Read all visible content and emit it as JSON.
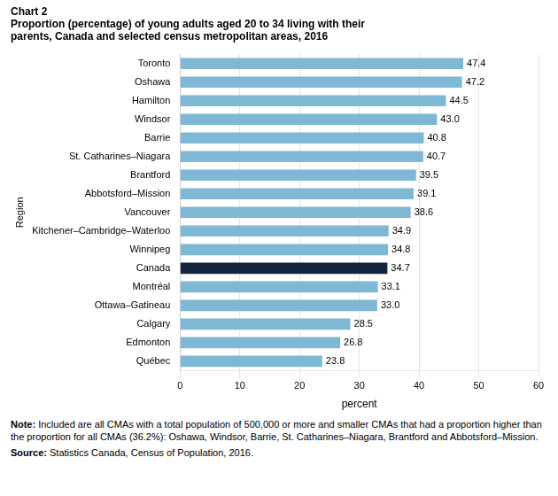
{
  "chart_data": {
    "type": "bar",
    "orientation": "horizontal",
    "chart_label": "Chart 2",
    "title": "Proportion (percentage) of young adults aged 20 to 34 living with their\nparents, Canada and selected census metropolitan areas, 2016",
    "xlabel": "percent",
    "ylabel": "Region",
    "categories": [
      "Toronto",
      "Oshawa",
      "Hamilton",
      "Windsor",
      "Barrie",
      "St. Catharines–Niagara",
      "Brantford",
      "Abbotsford–Mission",
      "Vancouver",
      "Kitchener–Cambridge–Waterloo",
      "Winnipeg",
      "Canada",
      "Montréal",
      "Ottawa–Gatineau",
      "Calgary",
      "Edmonton",
      "Québec"
    ],
    "values": [
      47.4,
      47.2,
      44.5,
      43.0,
      40.8,
      40.7,
      39.5,
      39.1,
      38.6,
      34.9,
      34.8,
      34.7,
      33.1,
      33.0,
      28.5,
      26.8,
      23.8
    ],
    "value_labels": [
      "47.4",
      "47.2",
      "44.5",
      "43.0",
      "40.8",
      "40.7",
      "39.5",
      "39.1",
      "38.6",
      "34.9",
      "34.8",
      "34.7",
      "33.1",
      "33.0",
      "28.5",
      "26.8",
      "23.8"
    ],
    "colors": [
      "#7eb8d4",
      "#7eb8d4",
      "#7eb8d4",
      "#7eb8d4",
      "#7eb8d4",
      "#7eb8d4",
      "#7eb8d4",
      "#7eb8d4",
      "#7eb8d4",
      "#7eb8d4",
      "#7eb8d4",
      "#12253d",
      "#7eb8d4",
      "#7eb8d4",
      "#7eb8d4",
      "#7eb8d4",
      "#7eb8d4"
    ],
    "xlim": [
      0,
      60
    ],
    "xticks": [
      0,
      10,
      20,
      30,
      40,
      50,
      60
    ],
    "grid": true,
    "data_labels": true,
    "note": "Note: Included are all CMAs with a total population of 500,000 or more and smaller CMAs that had a proportion higher than the proportion for all CMAs (36.2%): Oshawa, Windsor, Barrie, St. Catharines–Niagara, Brantford and Abbotsford–Mission.",
    "source": "Source: Statistics Canada, Census of Population, 2016."
  }
}
